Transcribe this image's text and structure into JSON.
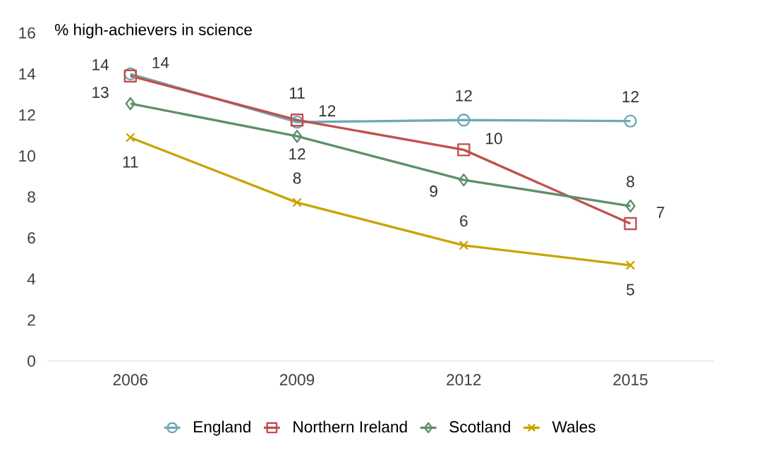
{
  "chart_data": {
    "type": "line",
    "ylabel": "% high-achievers in science",
    "categories": [
      "2006",
      "2009",
      "2012",
      "2015"
    ],
    "series": [
      {
        "name": "England",
        "color": "#6fa8b5",
        "marker": "circle",
        "values": [
          14.0,
          11.65,
          11.75,
          11.7
        ],
        "value_labels": [
          "14",
          "12",
          "12",
          "12"
        ]
      },
      {
        "name": "Northern Ireland",
        "color": "#c0504d",
        "marker": "square",
        "values": [
          13.9,
          11.75,
          10.3,
          6.7
        ],
        "value_labels": [
          "14",
          "12",
          "10",
          "7"
        ]
      },
      {
        "name": "Scotland",
        "color": "#5e8f6b",
        "marker": "diamond",
        "values": [
          12.55,
          10.96,
          8.83,
          7.56
        ],
        "value_labels": [
          "13",
          "11",
          "9",
          "8"
        ]
      },
      {
        "name": "Wales",
        "color": "#c9a400",
        "marker": "cross",
        "values": [
          10.9,
          7.73,
          5.64,
          4.67
        ],
        "value_labels": [
          "11",
          "8",
          "6",
          "5"
        ]
      }
    ],
    "ylim": [
      0,
      16
    ],
    "yticks": [
      0,
      2,
      4,
      6,
      8,
      10,
      12,
      14,
      16
    ],
    "grid": false,
    "legend": "bottom",
    "line_style": "solid"
  }
}
